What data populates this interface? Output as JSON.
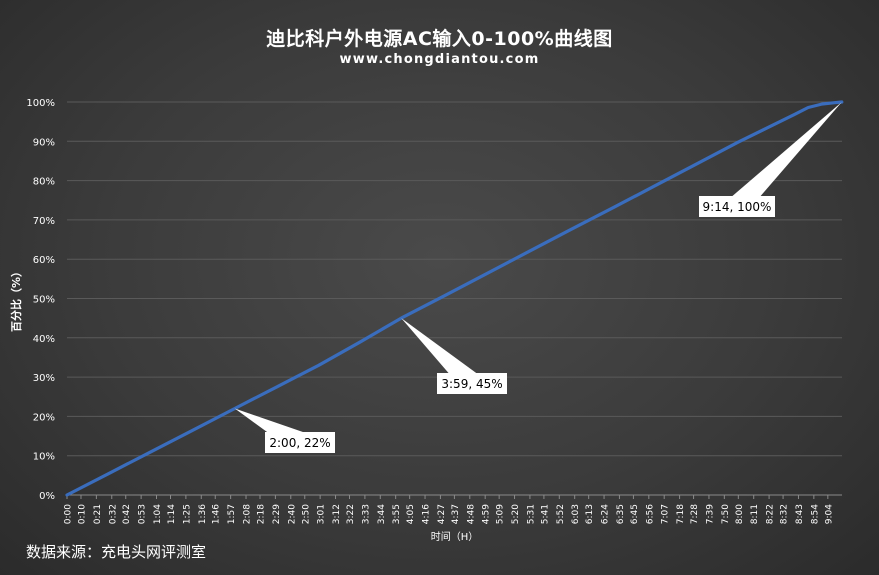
{
  "title": "迪比科户外电源AC输入0-100%曲线图",
  "subtitle": "www.chongdiantou.com",
  "source": "数据来源：充电头网评测室",
  "colors": {
    "line": "#3a6dbd",
    "grid": "#5a5a5a",
    "text": "#ffffff",
    "callout_bg": "#ffffff",
    "callout_text": "#000000"
  },
  "chart_data": {
    "type": "line",
    "xlabel": "时间（H）",
    "ylabel": "百分比（%）",
    "ylim": [
      0,
      100
    ],
    "grid": true,
    "categories": [
      "0:00",
      "0:10",
      "0:21",
      "0:32",
      "0:42",
      "0:53",
      "1:04",
      "1:14",
      "1:25",
      "1:36",
      "1:46",
      "1:57",
      "2:08",
      "2:18",
      "2:29",
      "2:40",
      "2:50",
      "3:01",
      "3:12",
      "3:22",
      "3:33",
      "3:44",
      "3:55",
      "4:05",
      "4:16",
      "4:27",
      "4:37",
      "4:48",
      "4:59",
      "5:09",
      "5:20",
      "5:31",
      "5:41",
      "5:52",
      "6:03",
      "6:13",
      "6:24",
      "6:35",
      "6:45",
      "6:56",
      "7:07",
      "7:18",
      "7:28",
      "7:39",
      "7:50",
      "8:00",
      "8:11",
      "8:22",
      "8:32",
      "8:43",
      "8:54",
      "9:04"
    ],
    "yticks": [
      "0%",
      "10%",
      "20%",
      "30%",
      "40%",
      "50%",
      "60%",
      "70%",
      "80%",
      "90%",
      "100%"
    ],
    "series": [
      {
        "x": [
          "0:00",
          "0:30",
          "1:00",
          "1:30",
          "2:00",
          "2:30",
          "3:00",
          "3:30",
          "3:59",
          "4:30",
          "5:00",
          "5:30",
          "6:00",
          "6:30",
          "7:00",
          "7:30",
          "8:00",
          "8:20",
          "8:40",
          "8:50",
          "9:00",
          "9:08",
          "9:14"
        ],
        "values": [
          0,
          5.5,
          11,
          16.5,
          22,
          27.5,
          33,
          39,
          45,
          50.7,
          56.3,
          61.9,
          67.5,
          73,
          78.6,
          84.2,
          89.8,
          93.3,
          96.8,
          98.6,
          99.5,
          99.8,
          100
        ]
      }
    ],
    "annotations": [
      {
        "x": "2:00",
        "y": 22,
        "text": "2:00, 22%"
      },
      {
        "x": "3:59",
        "y": 45,
        "text": "3:59, 45%"
      },
      {
        "x": "9:14",
        "y": 100,
        "text": "9:14, 100%"
      }
    ]
  }
}
